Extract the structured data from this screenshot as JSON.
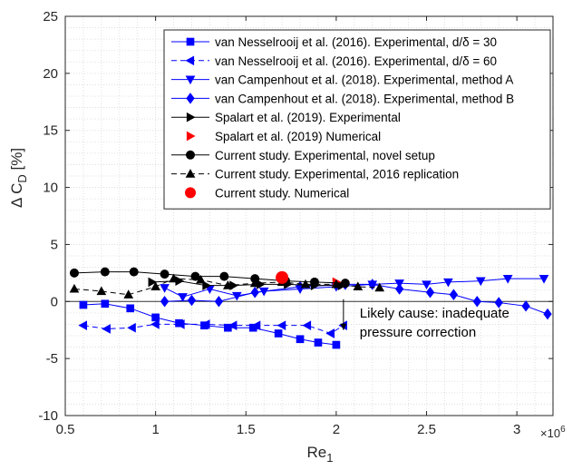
{
  "chart_data": {
    "type": "line",
    "xlabel": "Re",
    "xlabel_sub": "1",
    "x_multiplier": "×10",
    "x_multiplier_exp": "6",
    "ylabel": "Δ C",
    "ylabel_sub": "D",
    "ylabel_unit": "[%]",
    "xlim": [
      0.5,
      3.2
    ],
    "ylim": [
      -10,
      25
    ],
    "xticks": [
      0.5,
      1,
      1.5,
      2,
      2.5,
      3
    ],
    "xtick_labels": [
      "0.5",
      "1",
      "1.5",
      "2",
      "2.5",
      "3"
    ],
    "yticks": [
      -10,
      -5,
      0,
      5,
      10,
      15,
      20,
      25
    ],
    "ytick_labels": [
      "-10",
      "-5",
      "0",
      "5",
      "10",
      "15",
      "20",
      "25"
    ],
    "grid": "dotted, minor",
    "legend_position": "top-right",
    "annotation": {
      "lines": [
        "Likely cause: inadequate",
        "pressure correction"
      ],
      "arrow_from": [
        2.04,
        0.2
      ],
      "arrow_to": [
        2.04,
        -2.5
      ],
      "text_at": [
        2.13,
        -1.4
      ]
    },
    "series": [
      {
        "name": "van Nesselrooij et al. (2016). Experimental, d/δ = 30",
        "color": "#0000ff",
        "marker": "square",
        "dashed": false,
        "filled": true,
        "x": [
          0.6,
          0.72,
          0.86,
          1.0,
          1.13,
          1.27,
          1.4,
          1.54,
          1.68,
          1.8,
          1.9,
          2.0
        ],
        "y": [
          -0.3,
          -0.2,
          -0.6,
          -1.4,
          -1.9,
          -2.1,
          -2.3,
          -2.3,
          -2.8,
          -3.3,
          -3.6,
          -3.8
        ]
      },
      {
        "name": "van Nesselrooij et al. (2016). Experimental, d/δ = 60",
        "color": "#0000ff",
        "marker": "triangle-left",
        "dashed": true,
        "filled": true,
        "x": [
          0.6,
          0.73,
          0.87,
          1.0,
          1.14,
          1.28,
          1.43,
          1.56,
          1.7,
          1.84,
          1.97,
          2.04
        ],
        "y": [
          -2.1,
          -2.4,
          -2.3,
          -2.0,
          -2.0,
          -2.0,
          -2.1,
          -2.1,
          -2.1,
          -2.1,
          -2.8,
          -2.1
        ]
      },
      {
        "name": "van Campenhout et al. (2018). Experimental, method A",
        "color": "#0000ff",
        "marker": "triangle-down",
        "dashed": false,
        "filled": true,
        "x": [
          1.05,
          1.15,
          1.3,
          1.45,
          1.6,
          1.8,
          2.0,
          2.2,
          2.35,
          2.5,
          2.62,
          2.8,
          2.95,
          3.15
        ],
        "y": [
          1.2,
          0.4,
          1.1,
          0.5,
          0.9,
          1.1,
          1.3,
          1.5,
          1.6,
          1.5,
          1.7,
          1.8,
          2.0,
          2.0
        ]
      },
      {
        "name": "van Campenhout et al. (2018). Experimental, method B",
        "color": "#0000ff",
        "marker": "diamond",
        "dashed": false,
        "filled": true,
        "x": [
          1.05,
          1.2,
          1.35,
          1.55,
          1.8,
          2.05,
          2.2,
          2.35,
          2.52,
          2.65,
          2.78,
          2.9,
          3.05,
          3.17
        ],
        "y": [
          0.0,
          0.1,
          0.0,
          0.8,
          1.3,
          1.5,
          1.5,
          1.1,
          0.8,
          0.6,
          0.0,
          -0.1,
          -0.4,
          -1.1
        ]
      },
      {
        "name": "Spalart et al. (2019). Experimental",
        "color": "#000000",
        "marker": "triangle-right",
        "dashed": false,
        "filled": true,
        "x": [
          0.98,
          1.13,
          1.28,
          1.43,
          1.58,
          1.73,
          1.88,
          2.03
        ],
        "y": [
          1.7,
          1.8,
          1.4,
          1.4,
          1.5,
          1.5,
          1.4,
          1.4
        ]
      },
      {
        "name": "Spalart et al. (2019) Numerical",
        "color": "#ff0000",
        "marker": "triangle-right",
        "dashed": false,
        "filled": true,
        "line": false,
        "x": [
          2.0
        ],
        "y": [
          1.7
        ]
      },
      {
        "name": "Current study. Experimental, novel setup",
        "color": "#000000",
        "marker": "circle",
        "dashed": false,
        "filled": true,
        "x": [
          0.55,
          0.72,
          0.88,
          1.05,
          1.22,
          1.38,
          1.55,
          1.72,
          1.88,
          2.05
        ],
        "y": [
          2.5,
          2.6,
          2.6,
          2.4,
          2.2,
          2.2,
          2.0,
          1.8,
          1.7,
          1.6
        ]
      },
      {
        "name": "Current study. Experimental, 2016 replication",
        "color": "#000000",
        "marker": "triangle-up",
        "dashed": true,
        "filled": true,
        "x": [
          0.55,
          0.7,
          0.85,
          1.0,
          1.1,
          1.25,
          1.4,
          1.55,
          1.7,
          1.83,
          2.0,
          2.12,
          2.24
        ],
        "y": [
          1.1,
          0.9,
          0.6,
          1.3,
          2.0,
          1.9,
          1.4,
          1.6,
          1.7,
          1.5,
          1.5,
          1.3,
          1.2
        ]
      },
      {
        "name": "Current study. Numerical",
        "color": "#ff0000",
        "marker": "circle",
        "dashed": false,
        "filled": true,
        "line": false,
        "big": true,
        "x": [
          1.7
        ],
        "y": [
          2.1
        ]
      }
    ]
  }
}
